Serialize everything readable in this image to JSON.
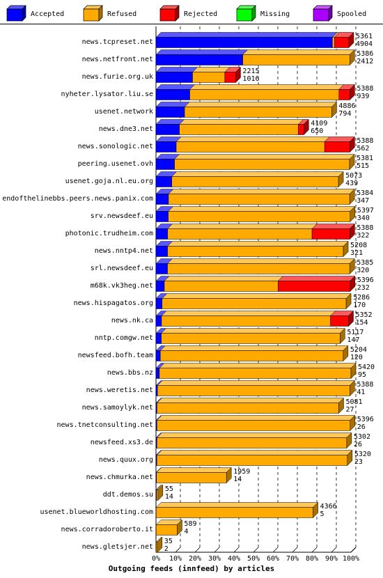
{
  "chart_data": {
    "type": "bar",
    "orientation": "horizontal",
    "stacked": true,
    "title": "Outgoing feeds (innfeed) by articles",
    "xlabel": "",
    "ylabel": "",
    "xlim": [
      0,
      100
    ],
    "x_unit": "%",
    "x_ticks": [
      "0%",
      "10%",
      "20%",
      "30%",
      "40%",
      "50%",
      "60%",
      "70%",
      "80%",
      "90%",
      "100%"
    ],
    "grid": "vertical-dashed",
    "legend_position": "top",
    "legend": [
      {
        "name": "Accepted",
        "color": "#0000ff"
      },
      {
        "name": "Refused",
        "color": "#ffaa00"
      },
      {
        "name": "Rejected",
        "color": "#ff0000"
      },
      {
        "name": "Missing",
        "color": "#00ff00"
      },
      {
        "name": "Spooled",
        "color": "#aa00ff"
      }
    ],
    "max_total": 5420,
    "categories": [
      "news.tcpreset.net",
      "news.netfront.net",
      "news.furie.org.uk",
      "nyheter.lysator.liu.se",
      "usenet.network",
      "news.dne3.net",
      "news.sonologic.net",
      "peering.usenet.ovh",
      "usenet.goja.nl.eu.org",
      "endofthelinebbs.peers.news.panix.com",
      "srv.newsdeef.eu",
      "photonic.trudheim.com",
      "news.nntp4.net",
      "srl.newsdeef.eu",
      "m68k.vk3heg.net",
      "news.hispagatos.org",
      "news.nk.ca",
      "nntp.comgw.net",
      "newsfeed.bofh.team",
      "news.bbs.nz",
      "news.weretis.net",
      "news.samoylyk.net",
      "news.tnetconsulting.net",
      "newsfeed.xs3.de",
      "news.quux.org",
      "news.chmurka.net",
      "ddt.demos.su",
      "usenet.blueworldhosting.com",
      "news.corradoroberto.it",
      "news.gletsjer.net"
    ],
    "totals": [
      5361,
      5386,
      2215,
      5388,
      4886,
      4109,
      5388,
      5381,
      5073,
      5384,
      5397,
      5388,
      5208,
      5385,
      5396,
      5286,
      5352,
      5117,
      5204,
      5420,
      5388,
      5081,
      5396,
      5302,
      5320,
      1959,
      55,
      4366,
      589,
      35
    ],
    "accepted": [
      4904,
      2412,
      1016,
      939,
      794,
      650,
      562,
      515,
      439,
      347,
      340,
      322,
      321,
      320,
      232,
      170,
      154,
      147,
      120,
      95,
      41,
      27,
      26,
      26,
      23,
      14,
      14,
      5,
      4,
      2
    ],
    "rejected": [
      400,
      0,
      300,
      300,
      0,
      150,
      700,
      0,
      0,
      0,
      0,
      1050,
      0,
      0,
      2000,
      0,
      500,
      0,
      0,
      0,
      0,
      0,
      0,
      0,
      0,
      0,
      0,
      0,
      0,
      0
    ],
    "spooled": [
      0,
      0,
      0,
      0,
      0,
      0,
      0,
      0,
      0,
      0,
      0,
      0,
      0,
      0,
      0,
      0,
      0,
      0,
      0,
      0,
      0,
      0,
      0,
      0,
      0,
      0,
      0,
      0,
      0,
      0
    ],
    "missing": [
      0,
      0,
      0,
      0,
      0,
      0,
      0,
      0,
      0,
      0,
      0,
      0,
      0,
      0,
      0,
      0,
      0,
      0,
      0,
      0,
      0,
      0,
      0,
      0,
      0,
      0,
      0,
      0,
      0,
      0
    ]
  }
}
